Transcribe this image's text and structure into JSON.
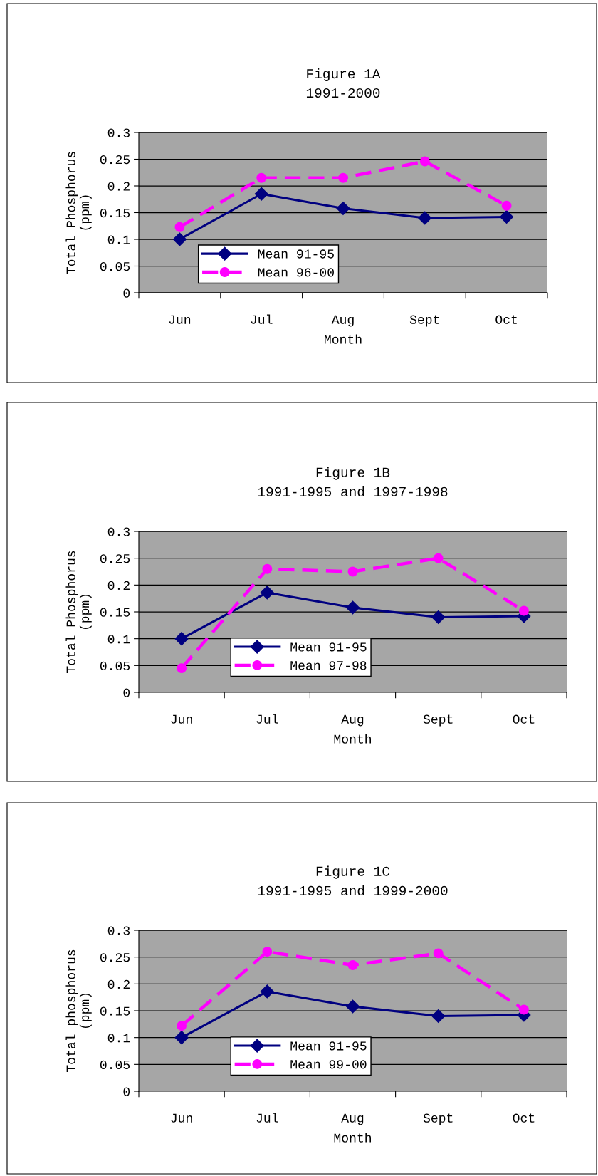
{
  "chart_data": [
    {
      "type": "line",
      "title": "Figure 1A",
      "subtitle": "1991-2000",
      "xlabel": "Month",
      "ylabel": "Total Phosphorus\n(ppm)",
      "categories": [
        "Jun",
        "Jul",
        "Aug",
        "Sept",
        "Oct"
      ],
      "series": [
        {
          "name": "Mean 91-95",
          "color": "#000080",
          "marker": "diamond",
          "line_style": "solid",
          "values": [
            0.1,
            0.185,
            0.158,
            0.14,
            0.142
          ]
        },
        {
          "name": "Mean 96-00",
          "color": "#ff00ff",
          "marker": "circle",
          "line_style": "dashed",
          "values": [
            0.123,
            0.215,
            0.215,
            0.246,
            0.163
          ]
        }
      ],
      "ylim": [
        0,
        0.3
      ],
      "yticks": [
        0,
        0.05,
        0.1,
        0.15,
        0.2,
        0.25,
        0.3
      ],
      "grid": "y",
      "legend": "bottom left"
    },
    {
      "type": "line",
      "title": "Figure 1B",
      "subtitle": "1991-1995 and 1997-1998",
      "xlabel": "Month",
      "ylabel": "Total Phosphorus\n(ppm)",
      "categories": [
        "Jun",
        "Jul",
        "Aug",
        "Sept",
        "Oct"
      ],
      "series": [
        {
          "name": "Mean 91-95",
          "color": "#000080",
          "marker": "diamond",
          "line_style": "solid",
          "values": [
            0.1,
            0.186,
            0.158,
            0.14,
            0.142
          ]
        },
        {
          "name": "Mean 97-98",
          "color": "#ff00ff",
          "marker": "circle",
          "line_style": "dashed",
          "values": [
            0.045,
            0.23,
            0.225,
            0.25,
            0.152
          ]
        }
      ],
      "ylim": [
        0,
        0.3
      ],
      "yticks": [
        0,
        0.05,
        0.1,
        0.15,
        0.2,
        0.25,
        0.3
      ],
      "grid": "y",
      "legend": "bottom"
    },
    {
      "type": "line",
      "title": "Figure 1C",
      "subtitle": "1991-1995 and 1999-2000",
      "xlabel": "Month",
      "ylabel": "Total phosphorus\n(ppm)",
      "categories": [
        "Jun",
        "Jul",
        "Aug",
        "Sept",
        "Oct"
      ],
      "series": [
        {
          "name": "Mean 91-95",
          "color": "#000080",
          "marker": "diamond",
          "line_style": "solid",
          "values": [
            0.1,
            0.186,
            0.158,
            0.14,
            0.142
          ]
        },
        {
          "name": "Mean 99-00",
          "color": "#ff00ff",
          "marker": "circle",
          "line_style": "dashed",
          "values": [
            0.122,
            0.26,
            0.235,
            0.257,
            0.152
          ]
        }
      ],
      "ylim": [
        0,
        0.3
      ],
      "yticks": [
        0,
        0.05,
        0.1,
        0.15,
        0.2,
        0.25,
        0.3
      ],
      "grid": "y",
      "legend": "bottom"
    }
  ]
}
